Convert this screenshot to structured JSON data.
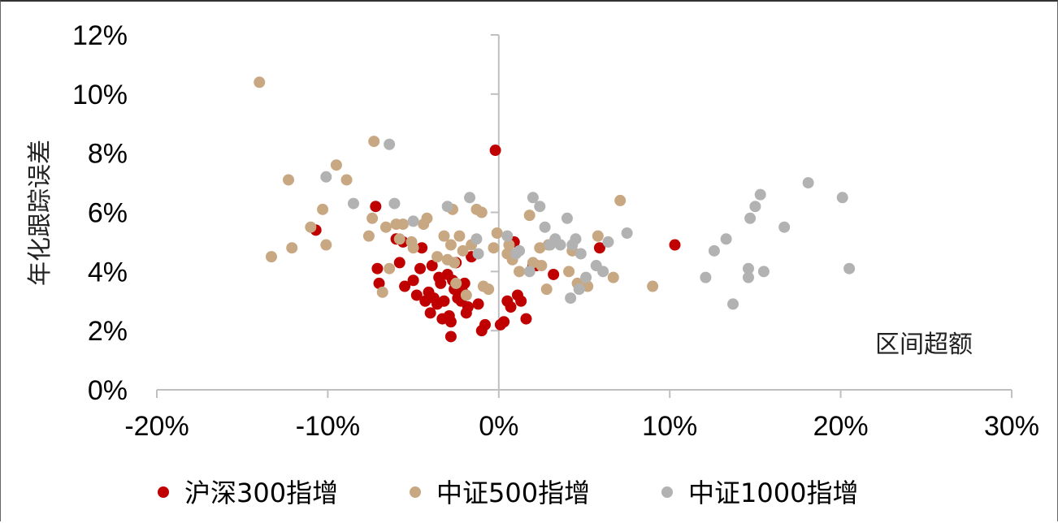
{
  "chart_data": {
    "type": "scatter",
    "xlabel": "区间超额",
    "ylabel": "年化跟踪误差",
    "xlim": [
      -0.2,
      0.3
    ],
    "ylim": [
      0,
      0.12
    ],
    "x_ticks": [
      "-20%",
      "-10%",
      "0%",
      "10%",
      "20%",
      "30%"
    ],
    "y_ticks": [
      "0%",
      "2%",
      "4%",
      "6%",
      "8%",
      "10%",
      "12%"
    ],
    "legend_position": "bottom",
    "series": [
      {
        "name": "沪深300指增",
        "color": "#c00000",
        "points": [
          [
            -0.107,
            0.054
          ],
          [
            -0.072,
            0.062
          ],
          [
            -0.071,
            0.041
          ],
          [
            -0.07,
            0.036
          ],
          [
            -0.06,
            0.051
          ],
          [
            -0.058,
            0.043
          ],
          [
            -0.056,
            0.05
          ],
          [
            -0.055,
            0.035
          ],
          [
            -0.05,
            0.037
          ],
          [
            -0.048,
            0.032
          ],
          [
            -0.046,
            0.041
          ],
          [
            -0.045,
            0.048
          ],
          [
            -0.043,
            0.03
          ],
          [
            -0.041,
            0.033
          ],
          [
            -0.04,
            0.026
          ],
          [
            -0.039,
            0.042
          ],
          [
            -0.038,
            0.031
          ],
          [
            -0.036,
            0.029
          ],
          [
            -0.035,
            0.038
          ],
          [
            -0.034,
            0.036
          ],
          [
            -0.033,
            0.024
          ],
          [
            -0.032,
            0.03
          ],
          [
            -0.03,
            0.039
          ],
          [
            -0.029,
            0.025
          ],
          [
            -0.028,
            0.023
          ],
          [
            -0.028,
            0.018
          ],
          [
            -0.027,
            0.037
          ],
          [
            -0.026,
            0.034
          ],
          [
            -0.025,
            0.043
          ],
          [
            -0.024,
            0.031
          ],
          [
            -0.022,
            0.03
          ],
          [
            -0.021,
            0.033
          ],
          [
            -0.02,
            0.036
          ],
          [
            -0.019,
            0.026
          ],
          [
            -0.018,
            0.028
          ],
          [
            -0.016,
            0.045
          ],
          [
            -0.012,
            0.029
          ],
          [
            -0.01,
            0.02
          ],
          [
            -0.008,
            0.022
          ],
          [
            -0.002,
            0.081
          ],
          [
            0.001,
            0.022
          ],
          [
            0.003,
            0.023
          ],
          [
            0.005,
            0.03
          ],
          [
            0.007,
            0.028
          ],
          [
            0.009,
            0.05
          ],
          [
            0.011,
            0.032
          ],
          [
            0.013,
            0.03
          ],
          [
            0.016,
            0.024
          ],
          [
            0.02,
            0.042
          ],
          [
            0.022,
            0.042
          ],
          [
            0.032,
            0.039
          ],
          [
            0.059,
            0.048
          ],
          [
            0.103,
            0.049
          ]
        ]
      },
      {
        "name": "中证500指增",
        "color": "#c8a882",
        "points": [
          [
            -0.14,
            0.104
          ],
          [
            -0.133,
            0.045
          ],
          [
            -0.123,
            0.071
          ],
          [
            -0.121,
            0.048
          ],
          [
            -0.11,
            0.055
          ],
          [
            -0.103,
            0.061
          ],
          [
            -0.101,
            0.049
          ],
          [
            -0.095,
            0.076
          ],
          [
            -0.089,
            0.071
          ],
          [
            -0.076,
            0.052
          ],
          [
            -0.074,
            0.058
          ],
          [
            -0.073,
            0.084
          ],
          [
            -0.068,
            0.033
          ],
          [
            -0.066,
            0.055
          ],
          [
            -0.064,
            0.041
          ],
          [
            -0.06,
            0.056
          ],
          [
            -0.058,
            0.051
          ],
          [
            -0.056,
            0.056
          ],
          [
            -0.051,
            0.05
          ],
          [
            -0.05,
            0.048
          ],
          [
            -0.044,
            0.056
          ],
          [
            -0.042,
            0.058
          ],
          [
            -0.036,
            0.045
          ],
          [
            -0.032,
            0.052
          ],
          [
            -0.03,
            0.044
          ],
          [
            -0.028,
            0.049
          ],
          [
            -0.027,
            0.061
          ],
          [
            -0.026,
            0.043
          ],
          [
            -0.025,
            0.036
          ],
          [
            -0.023,
            0.052
          ],
          [
            -0.021,
            0.047
          ],
          [
            -0.019,
            0.032
          ],
          [
            -0.016,
            0.049
          ],
          [
            -0.013,
            0.061
          ],
          [
            -0.01,
            0.06
          ],
          [
            -0.009,
            0.035
          ],
          [
            -0.006,
            0.034
          ],
          [
            -0.003,
            0.048
          ],
          [
            -0.001,
            0.053
          ],
          [
            0.005,
            0.046
          ],
          [
            0.006,
            0.049
          ],
          [
            0.008,
            0.044
          ],
          [
            0.012,
            0.04
          ],
          [
            0.018,
            0.059
          ],
          [
            0.02,
            0.043
          ],
          [
            0.024,
            0.048
          ],
          [
            0.025,
            0.042
          ],
          [
            0.028,
            0.034
          ],
          [
            0.029,
            0.049
          ],
          [
            0.041,
            0.04
          ],
          [
            0.043,
            0.047
          ],
          [
            0.046,
            0.036
          ],
          [
            0.052,
            0.035
          ],
          [
            0.058,
            0.052
          ],
          [
            0.067,
            0.038
          ],
          [
            0.071,
            0.064
          ],
          [
            0.09,
            0.035
          ]
        ]
      },
      {
        "name": "中证1000指增",
        "color": "#b2b2b2",
        "points": [
          [
            -0.101,
            0.072
          ],
          [
            -0.085,
            0.063
          ],
          [
            -0.064,
            0.083
          ],
          [
            -0.061,
            0.063
          ],
          [
            -0.05,
            0.057
          ],
          [
            -0.03,
            0.062
          ],
          [
            -0.017,
            0.065
          ],
          [
            -0.013,
            0.051
          ],
          [
            -0.012,
            0.046
          ],
          [
            0.005,
            0.052
          ],
          [
            0.01,
            0.046
          ],
          [
            0.012,
            0.047
          ],
          [
            0.018,
            0.04
          ],
          [
            0.02,
            0.065
          ],
          [
            0.024,
            0.062
          ],
          [
            0.027,
            0.055
          ],
          [
            0.03,
            0.049
          ],
          [
            0.033,
            0.051
          ],
          [
            0.036,
            0.049
          ],
          [
            0.04,
            0.058
          ],
          [
            0.042,
            0.031
          ],
          [
            0.043,
            0.049
          ],
          [
            0.045,
            0.051
          ],
          [
            0.047,
            0.034
          ],
          [
            0.048,
            0.046
          ],
          [
            0.051,
            0.038
          ],
          [
            0.057,
            0.042
          ],
          [
            0.061,
            0.04
          ],
          [
            0.064,
            0.05
          ],
          [
            0.075,
            0.053
          ],
          [
            0.121,
            0.038
          ],
          [
            0.126,
            0.047
          ],
          [
            0.133,
            0.051
          ],
          [
            0.137,
            0.029
          ],
          [
            0.146,
            0.041
          ],
          [
            0.146,
            0.038
          ],
          [
            0.147,
            0.058
          ],
          [
            0.15,
            0.062
          ],
          [
            0.153,
            0.066
          ],
          [
            0.155,
            0.04
          ],
          [
            0.167,
            0.055
          ],
          [
            0.181,
            0.07
          ],
          [
            0.201,
            0.065
          ],
          [
            0.205,
            0.041
          ]
        ]
      }
    ]
  }
}
